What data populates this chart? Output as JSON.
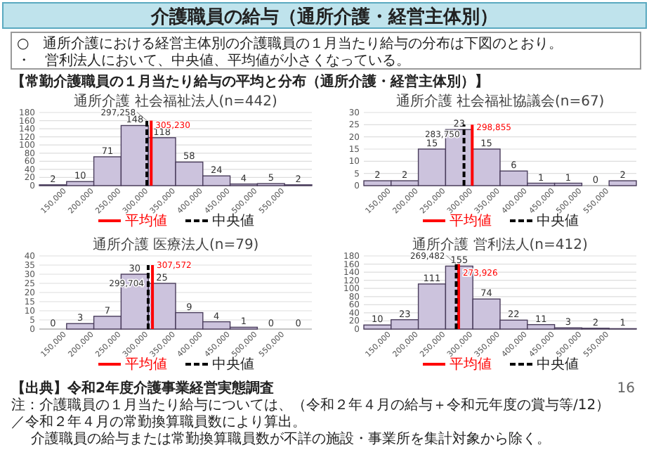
{
  "chart_data": [
    {
      "type": "other",
      "title": "介護職員の給与（通所介護・経営主体別）",
      "annotations": [
        "○　通所介護における経営主体別の介護職員の１月当たり給与の分布は下図のとおり。",
        "・　営利法人において、中央値、平均値が小さくなっている。",
        "【常勤介護職員の１月当たり給与の平均と分布（通所介護・経営主体別）】"
      ]
    },
    {
      "type": "histogram",
      "title": "通所介護 社会福祉法人(n=442)",
      "bins": [
        100000,
        150000,
        200000,
        250000,
        300000,
        350000,
        400000,
        450000,
        500000,
        550000,
        600000
      ],
      "values": [
        2,
        10,
        71,
        148,
        118,
        58,
        24,
        4,
        5,
        2
      ],
      "color": "#ccc3dd",
      "xlim": [
        100000,
        600000
      ],
      "xticks": [
        {
          "value": 150000,
          "label": "150,000"
        },
        {
          "value": 200000,
          "label": "200,000"
        },
        {
          "value": 250000,
          "label": "250,000"
        },
        {
          "value": 300000,
          "label": "300,000"
        },
        {
          "value": 350000,
          "label": "350,000"
        },
        {
          "value": 400000,
          "label": "400,000"
        },
        {
          "value": 450000,
          "label": "450,000"
        },
        {
          "value": 500000,
          "label": "500,000"
        },
        {
          "value": 550000,
          "label": "550,000"
        }
      ],
      "ylim": [
        0,
        180
      ],
      "yticks": [
        0,
        20,
        40,
        60,
        80,
        100,
        120,
        140,
        160,
        180
      ],
      "grid": "y",
      "data_labels": true,
      "legend": "bottom",
      "series": [
        {
          "name": "平均値",
          "type": "line",
          "color": "#ff0000",
          "line_style": "solid",
          "x": [
            305230,
            305230
          ],
          "values": [
            0,
            160
          ],
          "value_labels": [
            null,
            null
          ]
        },
        {
          "name": "中央値",
          "type": "line",
          "color": "#000000",
          "line_style": "dashed",
          "x": [
            297258,
            297258
          ],
          "values": [
            0,
            160
          ],
          "value_labels": [
            null,
            null
          ]
        }
      ],
      "annotations": [
        {
          "text": "297,258",
          "x": 297258,
          "y": 160
        },
        {
          "text": "305,230",
          "x": 305230,
          "y": 148
        }
      ]
    },
    {
      "type": "histogram",
      "title": "通所介護 社会福祉協議会(n=67)",
      "bins": [
        100000,
        150000,
        200000,
        250000,
        300000,
        350000,
        400000,
        450000,
        500000,
        550000,
        600000
      ],
      "values": [
        2,
        2,
        15,
        23,
        15,
        6,
        1,
        1,
        0,
        2
      ],
      "color": "#ccc3dd",
      "xlim": [
        100000,
        600000
      ],
      "xticks": [
        {
          "value": 150000,
          "label": "150,000"
        },
        {
          "value": 200000,
          "label": "200,000"
        },
        {
          "value": 250000,
          "label": "250,000"
        },
        {
          "value": 300000,
          "label": "300,000"
        },
        {
          "value": 350000,
          "label": "350,000"
        },
        {
          "value": 400000,
          "label": "400,000"
        },
        {
          "value": 450000,
          "label": "450,000"
        },
        {
          "value": 500000,
          "label": "500,000"
        },
        {
          "value": 550000,
          "label": "550,000"
        }
      ],
      "ylim": [
        0,
        30
      ],
      "yticks": [
        0,
        5,
        10,
        15,
        20,
        25,
        30
      ],
      "grid": "y",
      "data_labels": true,
      "legend": "bottom",
      "series": [
        {
          "name": "平均値",
          "type": "line",
          "color": "#ff0000",
          "line_style": "solid",
          "x": [
            298855,
            298855
          ],
          "values": [
            0,
            25
          ],
          "value_labels": [
            null,
            null
          ]
        },
        {
          "name": "中央値",
          "type": "line",
          "color": "#000000",
          "line_style": "dashed",
          "x": [
            283750,
            283750
          ],
          "values": [
            0,
            25
          ],
          "value_labels": [
            null,
            null
          ]
        }
      ],
      "annotations": [
        {
          "text": "283,750",
          "x": 283750,
          "y": 21
        },
        {
          "text": "298,855",
          "x": 298855,
          "y": 24
        }
      ]
    },
    {
      "type": "histogram",
      "title": "通所介護 医療法人(n=79)",
      "bins": [
        100000,
        150000,
        200000,
        250000,
        300000,
        350000,
        400000,
        450000,
        500000,
        550000,
        600000
      ],
      "values": [
        0,
        3,
        7,
        30,
        25,
        9,
        4,
        1,
        0,
        0
      ],
      "color": "#ccc3dd",
      "xlim": [
        100000,
        600000
      ],
      "xticks": [
        {
          "value": 150000,
          "label": "150,000"
        },
        {
          "value": 200000,
          "label": "200,000"
        },
        {
          "value": 250000,
          "label": "250,000"
        },
        {
          "value": 300000,
          "label": "300,000"
        },
        {
          "value": 350000,
          "label": "350,000"
        },
        {
          "value": 400000,
          "label": "400,000"
        },
        {
          "value": 450000,
          "label": "450,000"
        },
        {
          "value": 500000,
          "label": "500,000"
        },
        {
          "value": 550000,
          "label": "550,000"
        }
      ],
      "ylim": [
        0,
        40
      ],
      "yticks": [
        0,
        5,
        10,
        15,
        20,
        25,
        30,
        35,
        40
      ],
      "grid": "y",
      "data_labels": true,
      "legend": "bottom",
      "series": [
        {
          "name": "平均値",
          "type": "line",
          "color": "#ff0000",
          "line_style": "solid",
          "x": [
            307572,
            307572
          ],
          "values": [
            0,
            35
          ],
          "value_labels": [
            null,
            null
          ]
        },
        {
          "name": "中央値",
          "type": "line",
          "color": "#000000",
          "line_style": "dashed",
          "x": [
            299704,
            299704
          ],
          "values": [
            0,
            35
          ],
          "value_labels": [
            null,
            null
          ]
        }
      ],
      "annotations": [
        {
          "text": "299,704",
          "x": 299704,
          "y": 25
        },
        {
          "text": "307,572",
          "x": 307572,
          "y": 35
        }
      ]
    },
    {
      "type": "histogram",
      "title": "通所介護 営利法人(n=412)",
      "bins": [
        100000,
        150000,
        200000,
        250000,
        300000,
        350000,
        400000,
        450000,
        500000,
        550000,
        600000
      ],
      "values": [
        10,
        23,
        111,
        155,
        74,
        22,
        11,
        3,
        2,
        1
      ],
      "color": "#ccc3dd",
      "xlim": [
        100000,
        600000
      ],
      "xticks": [
        {
          "value": 150000,
          "label": "150,000"
        },
        {
          "value": 200000,
          "label": "200,000"
        },
        {
          "value": 250000,
          "label": "250,000"
        },
        {
          "value": 300000,
          "label": "300,000"
        },
        {
          "value": 350000,
          "label": "350,000"
        },
        {
          "value": 400000,
          "label": "400,000"
        },
        {
          "value": 450000,
          "label": "450,000"
        },
        {
          "value": 500000,
          "label": "500,000"
        },
        {
          "value": 550000,
          "label": "550,000"
        }
      ],
      "ylim": [
        0,
        180
      ],
      "yticks": [
        0,
        20,
        40,
        60,
        80,
        100,
        120,
        140,
        160,
        180
      ],
      "grid": "y",
      "data_labels": true,
      "legend": "bottom",
      "series": [
        {
          "name": "平均値",
          "type": "line",
          "color": "#ff0000",
          "line_style": "solid",
          "x": [
            273926,
            273926
          ],
          "values": [
            0,
            160
          ],
          "value_labels": [
            null,
            null
          ]
        },
        {
          "name": "中央値",
          "type": "line",
          "color": "#000000",
          "line_style": "dashed",
          "x": [
            269482,
            269482
          ],
          "values": [
            0,
            160
          ],
          "value_labels": [
            null,
            null
          ]
        }
      ],
      "annotations": [
        {
          "text": "269,482",
          "x": 269482,
          "y": 160
        },
        {
          "text": "273,926",
          "x": 273926,
          "y": 138
        }
      ]
    },
    {
      "type": "other",
      "annotations": [
        "【出典】令和2年度介護事業経営実態調査",
        "注：介護職員の１月当たり給与については、（令和２年４月の給与＋令和元年度の賞与等/12）／令和２年４月の常勤換算職員数により算出。",
        "介護職員の給与または常勤換算職員数が不詳の施設・事業所を集計対象から除く。",
        "16"
      ]
    }
  ]
}
